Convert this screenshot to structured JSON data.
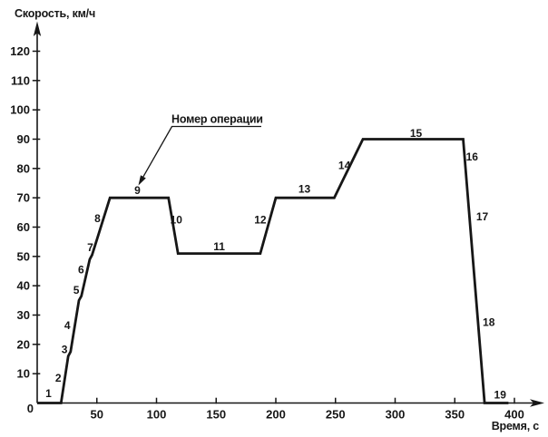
{
  "chart_data": {
    "type": "line",
    "title": "",
    "ylabel": "Скорость, км/ч",
    "xlabel": "Время, с",
    "xlim": [
      0,
      420
    ],
    "ylim": [
      0,
      130
    ],
    "x_ticks": [
      50,
      100,
      150,
      200,
      250,
      300,
      350,
      400
    ],
    "y_ticks": [
      10,
      20,
      30,
      40,
      50,
      60,
      70,
      80,
      90,
      100,
      110,
      120
    ],
    "origin_label": "0",
    "grid": false,
    "legend": null,
    "series": [
      {
        "name": "speed-profile",
        "points": [
          [
            0,
            0
          ],
          [
            20,
            0
          ],
          [
            26,
            16
          ],
          [
            28,
            17.5
          ],
          [
            35,
            35
          ],
          [
            37,
            36.5
          ],
          [
            44,
            49
          ],
          [
            46,
            50.5
          ],
          [
            61,
            70
          ],
          [
            110,
            70
          ],
          [
            118,
            51
          ],
          [
            187,
            51
          ],
          [
            200,
            70
          ],
          [
            249,
            70
          ],
          [
            273,
            90
          ],
          [
            357,
            90
          ],
          [
            375,
            0
          ],
          [
            395,
            0
          ]
        ]
      }
    ],
    "operation_labels": [
      {
        "n": "1",
        "t": 9.5,
        "v": 3.3
      },
      {
        "n": "2",
        "t": 17.7,
        "v": 8.5
      },
      {
        "n": "3",
        "t": 22.9,
        "v": 18.2
      },
      {
        "n": "4",
        "t": 25.3,
        "v": 26.5
      },
      {
        "n": "5",
        "t": 32.8,
        "v": 38.5
      },
      {
        "n": "6",
        "t": 36.8,
        "v": 45.5
      },
      {
        "n": "7",
        "t": 44.5,
        "v": 53.0
      },
      {
        "n": "8",
        "t": 50.5,
        "v": 63.0
      },
      {
        "n": "9",
        "t": 84.0,
        "v": 72.5
      },
      {
        "n": "10",
        "t": 116.5,
        "v": 62.5
      },
      {
        "n": "11",
        "t": 152.5,
        "v": 53.3
      },
      {
        "n": "12",
        "t": 187.0,
        "v": 62.5
      },
      {
        "n": "13",
        "t": 224.0,
        "v": 73.0
      },
      {
        "n": "14",
        "t": 257.5,
        "v": 81.0
      },
      {
        "n": "15",
        "t": 317.5,
        "v": 92.0
      },
      {
        "n": "16",
        "t": 364.5,
        "v": 84.0
      },
      {
        "n": "17",
        "t": 373.0,
        "v": 63.5
      },
      {
        "n": "18",
        "t": 378.5,
        "v": 27.5
      },
      {
        "n": "19",
        "t": 388.0,
        "v": 2.8
      }
    ],
    "annotation": {
      "text": "Номер операции",
      "points_to_operation": "9"
    }
  },
  "colors": {
    "ink": "#161616",
    "background": "#ffffff"
  }
}
